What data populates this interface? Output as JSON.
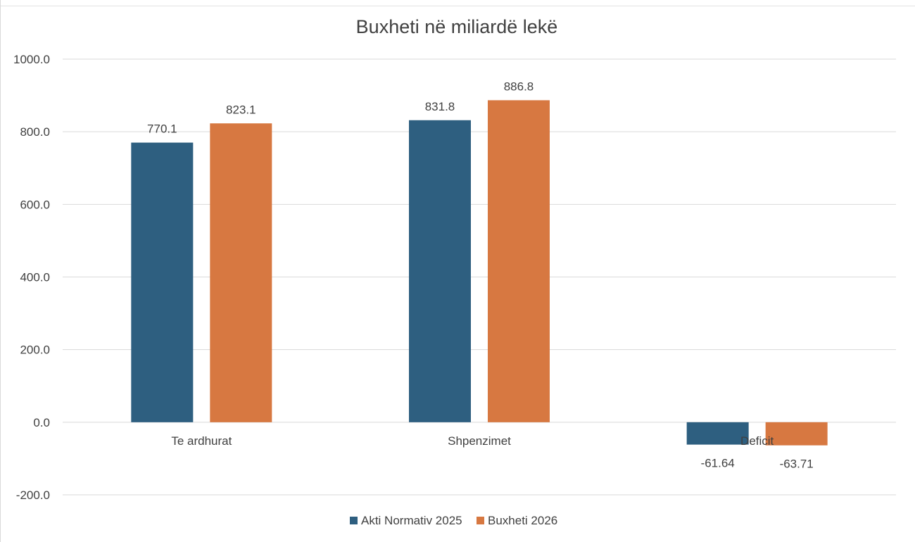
{
  "chart_data": {
    "type": "bar",
    "title": "Buxheti në miliardë lekë",
    "xlabel": "",
    "ylabel": "",
    "categories": [
      "Te ardhurat",
      "Shpenzimet",
      "Deficit"
    ],
    "series": [
      {
        "name": "Akti Normativ 2025",
        "color": "#2e5f80",
        "values": [
          770.1,
          831.8,
          -61.64
        ],
        "labels": [
          "770.1",
          "831.8",
          "-61.64"
        ]
      },
      {
        "name": "Buxheti 2026",
        "color": "#d77841",
        "values": [
          823.1,
          886.8,
          -63.71
        ],
        "labels": [
          "823.1",
          "886.8",
          "-63.71"
        ]
      }
    ],
    "ylim": [
      -200,
      1000
    ],
    "yticks": [
      1000,
      800,
      600,
      400,
      200,
      0,
      -200
    ],
    "ytick_labels": [
      "1000.0",
      "800.0",
      "600.0",
      "400.0",
      "200.0",
      "0.0",
      "-200.0"
    ],
    "grid": true,
    "legend_position": "bottom"
  }
}
